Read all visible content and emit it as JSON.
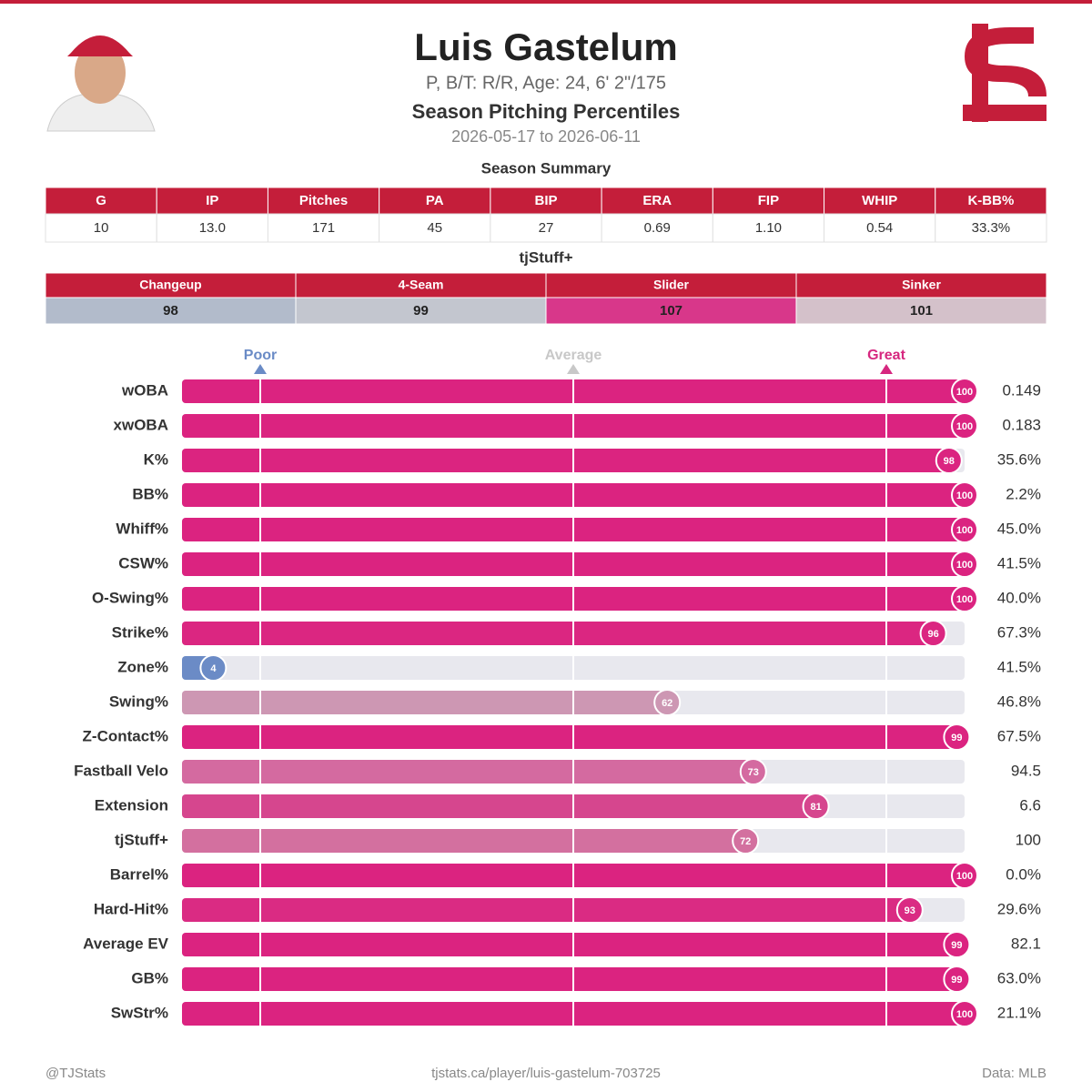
{
  "header": {
    "title": "Luis Gastelum",
    "subtitle": "P, B/T: R/R, Age: 24, 6' 2\"/175",
    "heading": "Season Pitching Percentiles",
    "date_range": "2026-05-17 to 2026-06-11"
  },
  "summary": {
    "title": "Season Summary",
    "columns": [
      "G",
      "IP",
      "Pitches",
      "PA",
      "BIP",
      "ERA",
      "FIP",
      "WHIP",
      "K-BB%"
    ],
    "rows": [
      [
        "10",
        "13.0",
        "171",
        "45",
        "27",
        "0.69",
        "1.10",
        "0.54",
        "33.3%"
      ]
    ]
  },
  "stuff": {
    "title": "tjStuff+",
    "columns": [
      "Changeup",
      "4-Seam",
      "Slider",
      "Sinker"
    ],
    "values": [
      98,
      99,
      107,
      101
    ],
    "colors": [
      "#b2bbcb",
      "#c3c6cf",
      "#d8378a",
      "#d4c1ca"
    ]
  },
  "chart_data": {
    "type": "bar",
    "orientation": "horizontal",
    "categories": [
      "wOBA",
      "xwOBA",
      "K%",
      "BB%",
      "Whiff%",
      "CSW%",
      "O-Swing%",
      "Strike%",
      "Zone%",
      "Swing%",
      "Z-Contact%",
      "Fastball Velo",
      "Extension",
      "tjStuff+",
      "Barrel%",
      "Hard-Hit%",
      "Average EV",
      "GB%",
      "SwStr%"
    ],
    "values": [
      100,
      100,
      98,
      100,
      100,
      100,
      100,
      96,
      4,
      62,
      99,
      73,
      81,
      72,
      100,
      93,
      99,
      99,
      100
    ],
    "colors": [
      "#db2380",
      "#db2380",
      "#db2480",
      "#db2380",
      "#db2380",
      "#db2380",
      "#db2380",
      "#db2681",
      "#6b8bc6",
      "#cd97b3",
      "#db2380",
      "#d46aa0",
      "#d6468e",
      "#d3709f",
      "#db2380",
      "#da2b83",
      "#db2380",
      "#db2380",
      "#db2380"
    ],
    "stat_values": [
      "0.149",
      "0.183",
      "35.6%",
      "2.2%",
      "45.0%",
      "41.5%",
      "40.0%",
      "67.3%",
      "41.5%",
      "46.8%",
      "67.5%",
      "94.5",
      "6.6",
      "100",
      "0.0%",
      "29.6%",
      "82.1",
      "63.0%",
      "21.1%"
    ],
    "xlim": [
      0,
      100
    ],
    "reference_lines": [
      {
        "value": 10,
        "label": "Poor",
        "color": "#6a8bc6"
      },
      {
        "value": 50,
        "label": "Average",
        "color": "#c8c8c8"
      },
      {
        "value": 90,
        "label": "Great",
        "color": "#d6277f"
      }
    ],
    "track_color": "#e8e8ee"
  },
  "footer": {
    "left": "@TJStats",
    "center": "tjstats.ca/player/luis-gastelum-703725",
    "right": "Data: MLB"
  }
}
